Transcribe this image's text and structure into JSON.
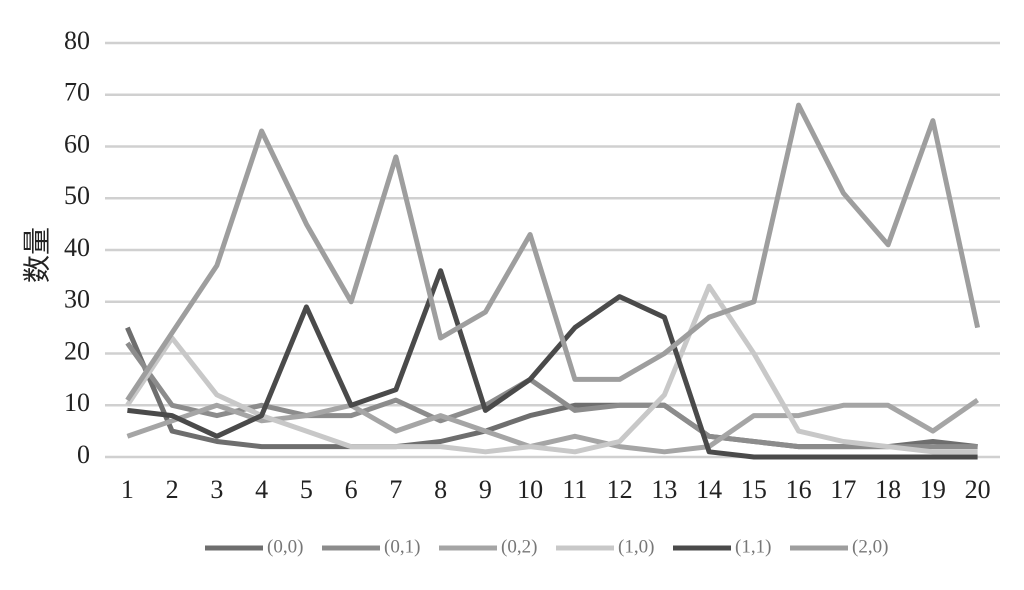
{
  "chart_data": {
    "type": "line",
    "y_label": "数量",
    "categories": [
      "1",
      "2",
      "3",
      "4",
      "5",
      "6",
      "7",
      "8",
      "9",
      "10",
      "11",
      "12",
      "13",
      "14",
      "15",
      "16",
      "17",
      "18",
      "19",
      "20"
    ],
    "series": [
      {
        "name": "(0,0)",
        "color": "#6e6e6e",
        "values": [
          25,
          5,
          3,
          2,
          2,
          2,
          2,
          3,
          5,
          8,
          10,
          10,
          10,
          4,
          3,
          2,
          2,
          2,
          3,
          2
        ]
      },
      {
        "name": "(0,1)",
        "color": "#8c8c8c",
        "values": [
          22,
          10,
          8,
          10,
          8,
          8,
          11,
          7,
          10,
          15,
          9,
          10,
          10,
          4,
          3,
          2,
          2,
          2,
          2,
          2
        ]
      },
      {
        "name": "(0,2)",
        "color": "#a5a5a5",
        "values": [
          4,
          7,
          10,
          7,
          8,
          10,
          5,
          8,
          5,
          2,
          4,
          2,
          1,
          2,
          8,
          8,
          10,
          10,
          5,
          11
        ]
      },
      {
        "name": "(1,0)",
        "color": "#c8c8c8",
        "values": [
          10,
          23,
          12,
          8,
          5,
          2,
          2,
          2,
          1,
          2,
          1,
          3,
          12,
          33,
          20,
          5,
          3,
          2,
          1,
          1
        ]
      },
      {
        "name": "(1,1)",
        "color": "#4a4a4a",
        "values": [
          9,
          8,
          4,
          8,
          29,
          10,
          13,
          36,
          9,
          15,
          25,
          31,
          27,
          1,
          0,
          0,
          0,
          0,
          0,
          0
        ]
      },
      {
        "name": "(2,0)",
        "color": "#9e9e9e",
        "values": [
          11,
          24,
          37,
          63,
          45,
          30,
          58,
          23,
          28,
          43,
          15,
          15,
          20,
          27,
          30,
          68,
          51,
          41,
          65,
          25
        ]
      }
    ],
    "ylim": [
      0,
      80
    ],
    "yticks": [
      0,
      10,
      20,
      30,
      40,
      50,
      60,
      70,
      80
    ],
    "grid": true
  }
}
